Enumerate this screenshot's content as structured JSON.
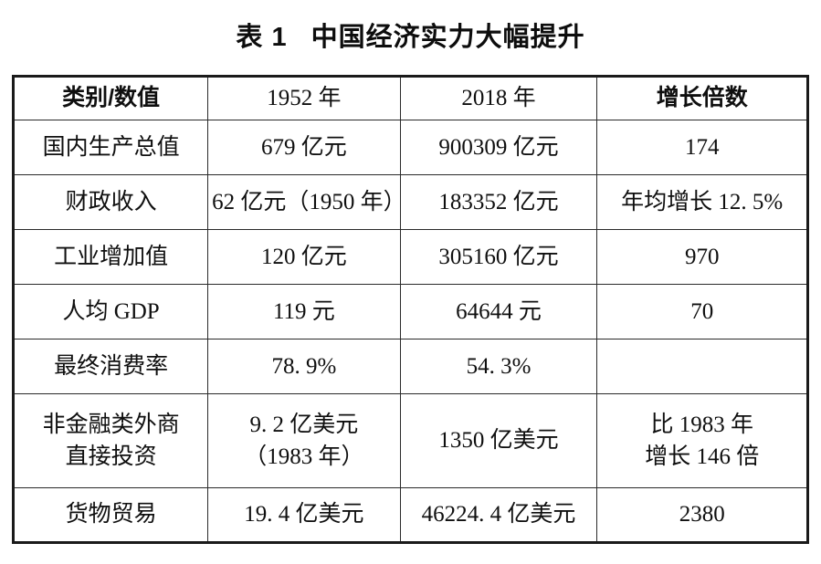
{
  "page": {
    "background_color": "#ffffff",
    "text_color": "#0f0f0f",
    "border_color": "#1a1a1a"
  },
  "title": {
    "prefix": "表 1",
    "text": "中国经济实力大幅提升"
  },
  "table": {
    "headers": [
      "类别/数值",
      "1952 年",
      "2018 年",
      "增长倍数"
    ],
    "rows": [
      {
        "cols": [
          "国内生产总值",
          "679 亿元",
          "900309 亿元",
          "174"
        ]
      },
      {
        "cols": [
          "财政收入",
          "62 亿元（1950 年）",
          "183352 亿元",
          "年均增长 12. 5%"
        ]
      },
      {
        "cols": [
          "工业增加值",
          "120 亿元",
          "305160 亿元",
          "970"
        ]
      },
      {
        "cols": [
          "人均 GDP",
          "119 元",
          "64644 元",
          "70"
        ]
      },
      {
        "cols": [
          "最终消费率",
          "78. 9%",
          "54. 3%",
          ""
        ]
      },
      {
        "cols": [
          "非金融类外商\n直接投资",
          "9. 2 亿美元\n（1983 年）",
          "1350 亿美元",
          "比 1983 年\n增长 146 倍"
        ]
      },
      {
        "cols": [
          "货物贸易",
          "19. 4 亿美元",
          "46224. 4 亿美元",
          "2380"
        ]
      }
    ]
  }
}
